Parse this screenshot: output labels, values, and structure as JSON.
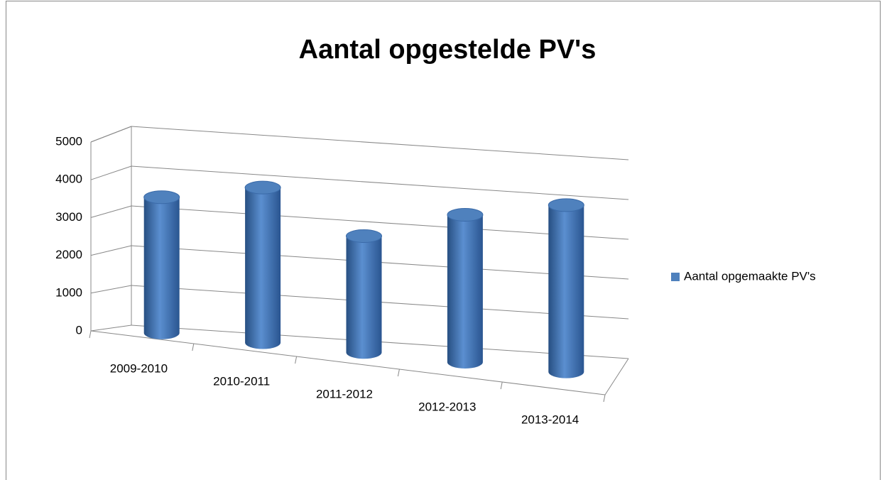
{
  "chart_data": {
    "type": "bar3d",
    "title": "Aantal opgestelde PV's",
    "categories": [
      "2009-2010",
      "2010-2011",
      "2011-2012",
      "2012-2013",
      "2013-2014"
    ],
    "series": [
      {
        "name": "Aantal opgemaakte PV's",
        "color": "#4f81bd",
        "values": [
          3500,
          4000,
          3000,
          3800,
          4300
        ]
      }
    ],
    "ylim": [
      0,
      5000
    ],
    "yticks": [
      0,
      1000,
      2000,
      3000,
      4000,
      5000
    ],
    "grid": true,
    "legend": "right"
  }
}
